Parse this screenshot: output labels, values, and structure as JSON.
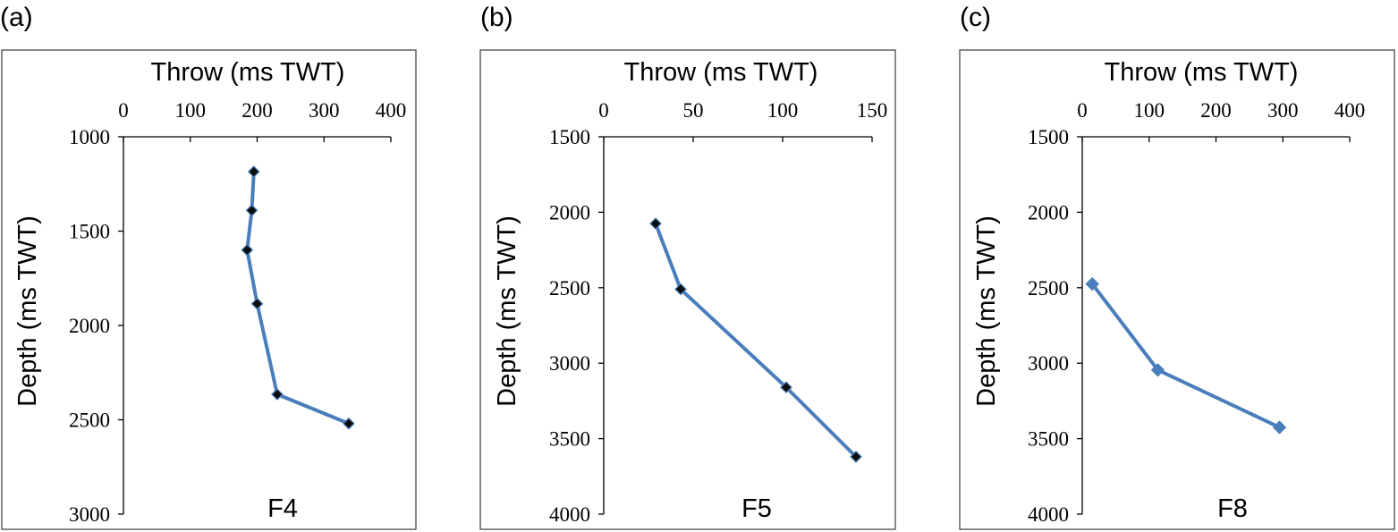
{
  "colors": {
    "series_line": "#4a7ebb",
    "marker_dark": "#0d0d0d",
    "marker_blue": "#4a7ebb"
  },
  "chart_data": [
    {
      "type": "line",
      "panel_label": "(a)",
      "fault_label": "F4",
      "xlabel": "Throw (ms TWT)",
      "ylabel": "Depth (ms TWT)",
      "xlim": [
        0,
        400
      ],
      "ylim": [
        1000,
        3000
      ],
      "y_inverted": true,
      "x_axis_position": "top",
      "x_ticks": [
        0,
        100,
        200,
        300,
        400
      ],
      "y_ticks": [
        1000,
        1500,
        2000,
        2500,
        3000
      ],
      "grid": false,
      "marker": "diamond-dark",
      "points": [
        {
          "x": 195,
          "y": 1185
        },
        {
          "x": 192,
          "y": 1390
        },
        {
          "x": 185,
          "y": 1600
        },
        {
          "x": 200,
          "y": 1885
        },
        {
          "x": 230,
          "y": 2365
        },
        {
          "x": 337,
          "y": 2520
        }
      ]
    },
    {
      "type": "line",
      "panel_label": "(b)",
      "fault_label": "F5",
      "xlabel": "Throw (ms TWT)",
      "ylabel": "Depth (ms TWT)",
      "xlim": [
        0,
        150
      ],
      "ylim": [
        1500,
        4000
      ],
      "y_inverted": true,
      "x_axis_position": "top",
      "x_ticks": [
        0,
        50,
        100,
        150
      ],
      "y_ticks": [
        1500,
        2000,
        2500,
        3000,
        3500,
        4000
      ],
      "grid": false,
      "marker": "diamond-dark",
      "points": [
        {
          "x": 29,
          "y": 2075
        },
        {
          "x": 43,
          "y": 2510
        },
        {
          "x": 102,
          "y": 3160
        },
        {
          "x": 141,
          "y": 3620
        }
      ]
    },
    {
      "type": "line",
      "panel_label": "(c)",
      "fault_label": "F8",
      "xlabel": "Throw (ms TWT)",
      "ylabel": "Depth (ms TWT)",
      "xlim": [
        0,
        400
      ],
      "ylim": [
        1500,
        4000
      ],
      "y_inverted": true,
      "x_axis_position": "top",
      "x_ticks": [
        0,
        100,
        200,
        300,
        400
      ],
      "y_ticks": [
        1500,
        2000,
        2500,
        3000,
        3500,
        4000
      ],
      "grid": false,
      "marker": "diamond-blue",
      "points": [
        {
          "x": 15,
          "y": 2475
        },
        {
          "x": 113,
          "y": 3045
        },
        {
          "x": 295,
          "y": 3425
        }
      ]
    }
  ]
}
